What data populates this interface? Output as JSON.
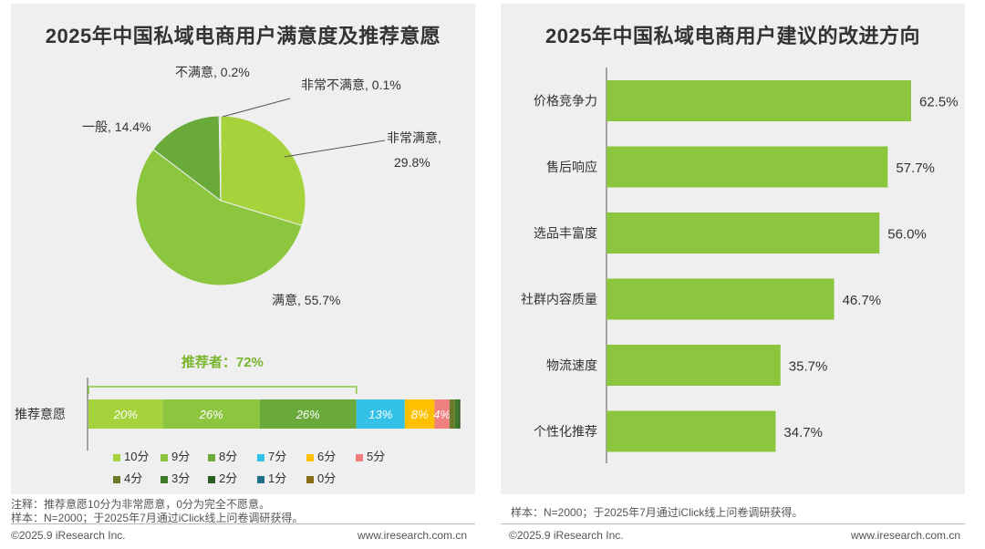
{
  "left_panel": {
    "title": "2025年中国私域电商用户满意度及推荐意愿",
    "note1": "注释：推荐意愿10分为非常愿意，0分为完全不愿意。",
    "note2": "样本：N=2000；于2025年7月通过iClick线上问卷调研获得。"
  },
  "right_panel": {
    "title": "2025年中国私域电商用户建议的改进方向",
    "note1": "样本：N=2000；于2025年7月通过iClick线上问卷调研获得。"
  },
  "footer": {
    "copyright": "©2025.9 iResearch Inc.",
    "url": "www.iresearch.com.cn"
  },
  "chart_data": [
    {
      "type": "pie",
      "title": "满意度",
      "slices": [
        {
          "label": "非常满意",
          "value": 29.8,
          "display": "29.8%",
          "color": "#a6d23c"
        },
        {
          "label": "满意",
          "value": 55.7,
          "display": "55.7%",
          "color": "#8cc63f"
        },
        {
          "label": "一般",
          "value": 14.4,
          "display": "14.4%",
          "color": "#6aaa3a"
        },
        {
          "label": "不满意",
          "value": 0.2,
          "display": "0.2%",
          "color": "#4f8a2b"
        },
        {
          "label": "非常不满意",
          "value": 0.1,
          "display": "0.1%",
          "color": "#3d6e20"
        }
      ]
    },
    {
      "type": "bar",
      "orientation": "horizontal-stacked",
      "category": "推荐意愿",
      "promoter_label": "推荐者：72%",
      "segments": [
        {
          "label": "10分",
          "value": 20,
          "display": "20%",
          "color": "#a6d23c"
        },
        {
          "label": "9分",
          "value": 26,
          "display": "26%",
          "color": "#8cc63f"
        },
        {
          "label": "8分",
          "value": 26,
          "display": "26%",
          "color": "#6aaa3a"
        },
        {
          "label": "7分",
          "value": 13,
          "display": "13%",
          "color": "#33c1e8"
        },
        {
          "label": "6分",
          "value": 8,
          "display": "8%",
          "color": "#ffc000"
        },
        {
          "label": "5分",
          "value": 4,
          "display": "4%",
          "color": "#f08080"
        },
        {
          "label": "4分",
          "value": 1.5,
          "display": "",
          "color": "#6b7a2b"
        },
        {
          "label": "3分",
          "value": 1,
          "display": "",
          "color": "#3d7a2a"
        },
        {
          "label": "2分",
          "value": 0.3,
          "display": "",
          "color": "#2a5e22"
        },
        {
          "label": "1分",
          "value": 0.1,
          "display": "",
          "color": "#1f6f8b"
        },
        {
          "label": "0分",
          "value": 0.1,
          "display": "",
          "color": "#8a6d1a"
        }
      ]
    },
    {
      "type": "bar",
      "orientation": "horizontal",
      "title": "2025年中国私域电商用户建议的改进方向",
      "categories": [
        "价格竞争力",
        "售后响应",
        "选品丰富度",
        "社群内容质量",
        "物流速度",
        "个性化推荐"
      ],
      "values": [
        62.5,
        57.7,
        56.0,
        46.7,
        35.7,
        34.7
      ],
      "labels": [
        "62.5%",
        "57.7%",
        "56.0%",
        "46.7%",
        "35.7%",
        "34.7%"
      ],
      "color": "#8cc63f",
      "xlim": [
        0,
        62.5
      ]
    }
  ]
}
